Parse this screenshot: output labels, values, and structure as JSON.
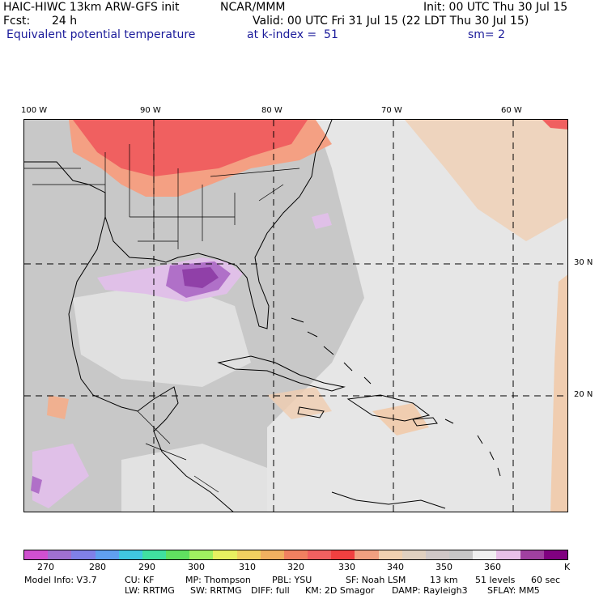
{
  "header": {
    "model": "HAIC-HIWC 13km ARW-GFS init",
    "org": "NCAR/MMM",
    "init": "Init: 00 UTC Thu 30 Jul 15",
    "fcst_label": "Fcst:",
    "fcst_value": "24 h",
    "valid": "Valid: 00 UTC Fri 31 Jul 15 (22 LDT Thu 30 Jul 15)",
    "field": "Equivalent potential temperature",
    "level": "at k-index =  51",
    "smooth": "sm= 2"
  },
  "map": {
    "lon_labels": [
      "100 W",
      "90 W",
      "80 W",
      "70 W",
      "60 W"
    ],
    "lat_labels": [
      "30 N",
      "20 N"
    ],
    "colors": {
      "land_gray": "#c8c8c8",
      "warm_red": "#f06060",
      "warm_salmon": "#f4a083",
      "peach": "#f0cdb0",
      "light": "#e6e6e6",
      "lavender": "#e0c0e8",
      "purple": "#b070c8",
      "deep_purple": "#9040a8"
    }
  },
  "colorbar": {
    "colors": [
      "#d050d0",
      "#a070d0",
      "#8080e8",
      "#60a0f0",
      "#40c8e0",
      "#40e0a0",
      "#60e060",
      "#a0f060",
      "#e8f060",
      "#f0d060",
      "#f0b060",
      "#f08060",
      "#f06060",
      "#f04040",
      "#f0a080",
      "#f0d0b0",
      "#e0d0c0",
      "#d0c8c8",
      "#c8c8c8",
      "#f0f0f0",
      "#e8c0e8",
      "#a040a0",
      "#800080"
    ],
    "labels": [
      "270",
      "280",
      "290",
      "300",
      "310",
      "320",
      "330",
      "340",
      "350",
      "360",
      "K"
    ]
  },
  "footer": {
    "line1": [
      "Model Info: V3.7",
      "CU: KF",
      "MP: Thompson",
      "PBL: YSU",
      "SF: Noah LSM",
      "13 km",
      "51 levels",
      "60 sec"
    ],
    "line2": [
      "LW: RRTMG",
      "SW: RRTMG",
      "DIFF: full",
      "KM: 2D Smagor",
      "DAMP: Rayleigh3",
      "SFLAY: MM5"
    ]
  }
}
